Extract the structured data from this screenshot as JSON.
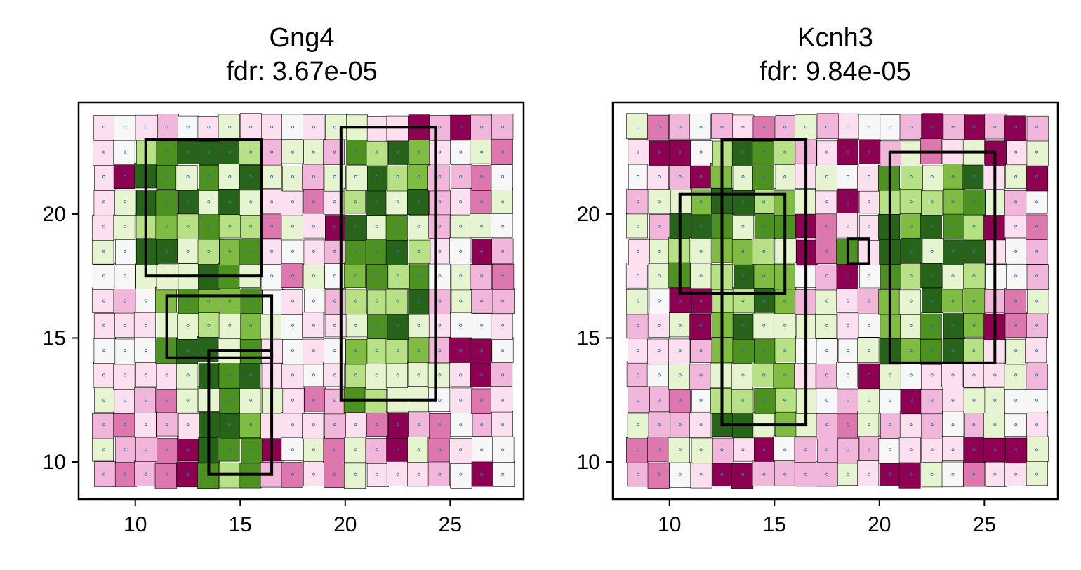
{
  "chart_data": [
    {
      "type": "heatmap",
      "title": "Gng4",
      "subtitle": "fdr: 3.67e-05",
      "xlim": [
        7.3,
        28.5
      ],
      "ylim": [
        8.5,
        24.5
      ],
      "xticks": [
        10,
        15,
        20,
        25
      ],
      "yticks": [
        10,
        15,
        20
      ],
      "seed": 7,
      "regions": [
        {
          "x": 10.5,
          "y": 17.5,
          "w": 5.5,
          "h": 5.5
        },
        {
          "x": 11.5,
          "y": 14.2,
          "w": 5.0,
          "h": 2.5
        },
        {
          "x": 13.5,
          "y": 9.5,
          "w": 3.0,
          "h": 5.0
        },
        {
          "x": 19.8,
          "y": 12.5,
          "w": 4.5,
          "h": 11.0
        }
      ],
      "color_scale": [
        "#8e0152",
        "#c51b7d",
        "#de77ae",
        "#f1b6da",
        "#fde0ef",
        "#f7f7f7",
        "#e6f5d0",
        "#b8e186",
        "#7fbc41",
        "#4d9221",
        "#276419"
      ]
    },
    {
      "type": "heatmap",
      "title": "Kcnh3",
      "subtitle": "fdr: 9.84e-05",
      "xlim": [
        7.3,
        28.5
      ],
      "ylim": [
        8.5,
        24.5
      ],
      "xticks": [
        10,
        15,
        20,
        25
      ],
      "yticks": [
        10,
        15,
        20
      ],
      "seed": 13,
      "regions": [
        {
          "x": 10.5,
          "y": 16.8,
          "w": 5.0,
          "h": 4.0
        },
        {
          "x": 12.5,
          "y": 11.5,
          "w": 4.0,
          "h": 11.5
        },
        {
          "x": 20.5,
          "y": 14.0,
          "w": 5.0,
          "h": 8.5
        },
        {
          "x": 18.5,
          "y": 18.0,
          "w": 1.0,
          "h": 1.0
        }
      ],
      "color_scale": [
        "#8e0152",
        "#c51b7d",
        "#de77ae",
        "#f1b6da",
        "#fde0ef",
        "#f7f7f7",
        "#e6f5d0",
        "#b8e186",
        "#7fbc41",
        "#4d9221",
        "#276419"
      ]
    }
  ]
}
